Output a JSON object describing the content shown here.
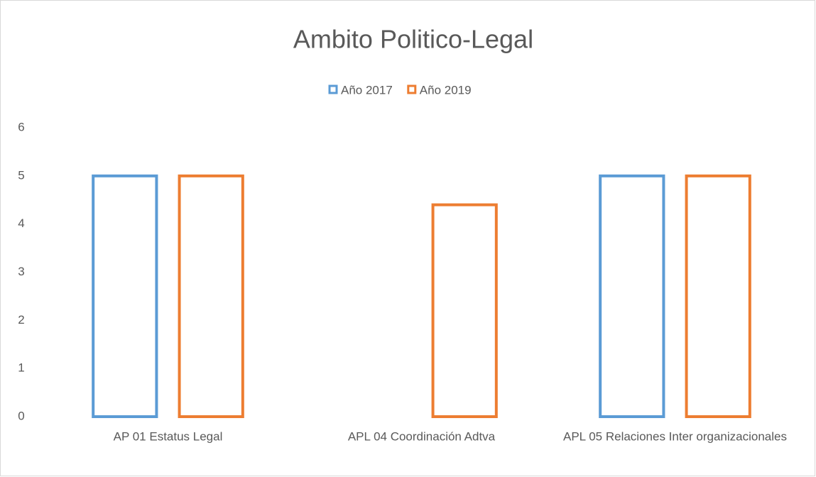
{
  "chart_data": {
    "type": "bar",
    "title": "Ambito Politico-Legal",
    "categories": [
      "AP 01 Estatus Legal",
      "APL 04 Coordinación Adtva",
      "APL 05 Relaciones Inter organizacionales"
    ],
    "series": [
      {
        "name": "Año 2017",
        "color": "#5b9bd5",
        "values": [
          5,
          null,
          5
        ]
      },
      {
        "name": "Año 2019",
        "color": "#ed7d31",
        "values": [
          5,
          4.4,
          5
        ]
      }
    ],
    "ylim": [
      0,
      6
    ],
    "yticks": [
      0,
      1,
      2,
      3,
      4,
      5,
      6
    ],
    "grid": false,
    "legend": "top"
  }
}
